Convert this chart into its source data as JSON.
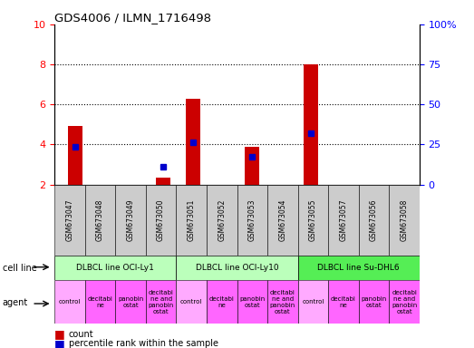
{
  "title": "GDS4006 / ILMN_1716498",
  "samples": [
    "GSM673047",
    "GSM673048",
    "GSM673049",
    "GSM673050",
    "GSM673051",
    "GSM673052",
    "GSM673053",
    "GSM673054",
    "GSM673055",
    "GSM673057",
    "GSM673056",
    "GSM673058"
  ],
  "count_values": [
    4.9,
    null,
    null,
    2.35,
    6.3,
    null,
    3.9,
    null,
    8.0,
    null,
    null,
    null
  ],
  "percentile_values": [
    3.9,
    null,
    null,
    2.9,
    4.1,
    null,
    3.4,
    null,
    4.55,
    null,
    null,
    null
  ],
  "ylim": [
    2,
    10
  ],
  "yticks_left": [
    2,
    4,
    6,
    8,
    10
  ],
  "yticks_right": [
    0,
    25,
    50,
    75,
    100
  ],
  "ylim_right": [
    0,
    100
  ],
  "cell_lines": [
    {
      "label": "DLBCL line OCI-Ly1",
      "start": 0,
      "end": 4,
      "color": "#bbffbb"
    },
    {
      "label": "DLBCL line OCI-Ly10",
      "start": 4,
      "end": 8,
      "color": "#bbffbb"
    },
    {
      "label": "DLBCL line Su-DHL6",
      "start": 8,
      "end": 12,
      "color": "#55ee55"
    }
  ],
  "agent_labels": [
    "control",
    "decitabi\nne",
    "panobin\nostat",
    "decitabi\nne and\npanobin\nostat"
  ],
  "agent_colors": [
    "#ffaaff",
    "#ff66ff",
    "#ff66ff",
    "#ff66ff"
  ],
  "bar_color": "#cc0000",
  "percentile_color": "#0000cc",
  "sample_bg_color": "#cccccc",
  "bar_width": 0.5
}
